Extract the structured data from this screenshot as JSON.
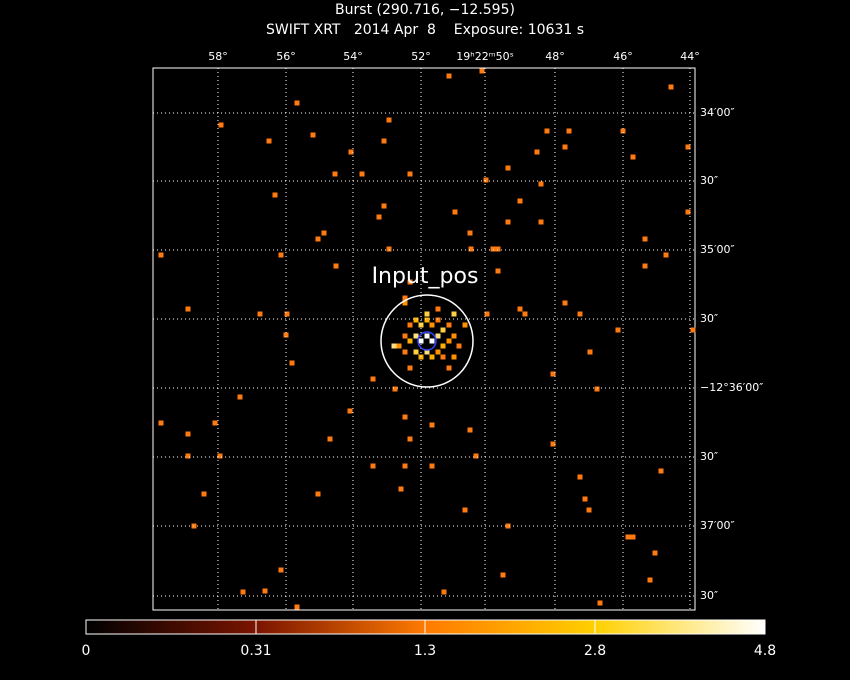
{
  "header": {
    "title": "Burst (290.716, −12.595)",
    "subtitle": "SWIFT XRT   2014 Apr  8    Exposure: 10631 s"
  },
  "axes": {
    "top_labels": [
      "58°",
      "56°",
      "54°",
      "52°",
      "19ʰ22ᵐ50ˢ",
      "48°",
      "46°",
      "44°"
    ],
    "right_labels": [
      "34′00″",
      "30″",
      "35′00″",
      "30″",
      "−12°36′00″",
      "30″",
      "37′00″",
      "30″"
    ]
  },
  "annotation": "Input_pos",
  "colorbar": {
    "labels": [
      "0",
      "0.31",
      "1.3",
      "2.8",
      "4.8"
    ]
  }
}
